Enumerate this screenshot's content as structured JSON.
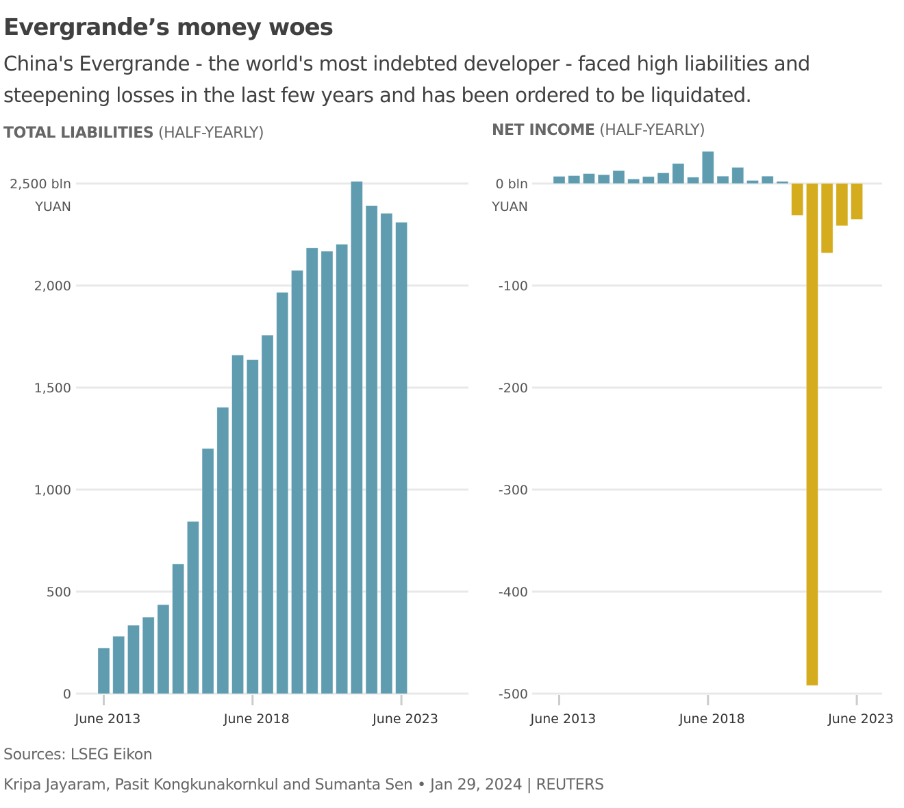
{
  "header": {
    "title": "Evergrande’s money woes",
    "subtitle": "China's Evergrande - the world's most indebted developer - faced high liabilities and steepening losses in the last few years and has been ordered to be liquidated."
  },
  "footer": {
    "sources": "Sources: LSEG Eikon",
    "credit": "Kripa Jayaram, Pasit Kongkunakornkul and Sumanta Sen • Jan 29, 2024 | REUTERS"
  },
  "colors": {
    "positive": "#5f9cb0",
    "negative": "#d4ac1d",
    "grid": "#e8e8e8",
    "tick": "#cccccc"
  },
  "chart_data": [
    {
      "type": "bar",
      "title_bold": "TOTAL LIABILITIES",
      "title_rest": " (HALF-YEARLY)",
      "unit_label_top": "bln",
      "unit_label_second": "YUAN",
      "xlabel": "",
      "ylabel": "bln yuan",
      "ylim": [
        0,
        2500
      ],
      "yticks": [
        0,
        500,
        1000,
        1500,
        2000,
        2500
      ],
      "ytick_labels": [
        "0",
        "500",
        "1,000",
        "1,500",
        "2,000",
        "2,500 bln"
      ],
      "grid": true,
      "categories": [
        "Jun 2013",
        "Dec 2013",
        "Jun 2014",
        "Dec 2014",
        "Jun 2015",
        "Dec 2015",
        "Jun 2016",
        "Dec 2016",
        "Jun 2017",
        "Dec 2017",
        "Jun 2018",
        "Dec 2018",
        "Jun 2019",
        "Dec 2019",
        "Jun 2020",
        "Dec 2020",
        "Jun 2021",
        "Dec 2021",
        "Jun 2022",
        "Dec 2022",
        "Jun 2023"
      ],
      "xticks": [
        {
          "index": 0,
          "label": "June 2013"
        },
        {
          "index": 10,
          "label": "June 2018"
        },
        {
          "index": 20,
          "label": "June 2023"
        }
      ],
      "values": [
        224,
        281,
        335,
        375,
        436,
        635,
        844,
        1201,
        1403,
        1659,
        1636,
        1757,
        1966,
        2074,
        2185,
        2168,
        2202,
        2510,
        2391,
        2354,
        2310
      ]
    },
    {
      "type": "bar",
      "title_bold": "NET INCOME",
      "title_rest": " (HALF-YEARLY)",
      "unit_label_top": "bln",
      "unit_label_second": "YUAN",
      "xlabel": "",
      "ylabel": "bln yuan",
      "ylim": [
        -500,
        0
      ],
      "yticks": [
        0,
        -100,
        -200,
        -300,
        -400,
        -500
      ],
      "ytick_labels": [
        "0 bln",
        "-100",
        "-200",
        "-300",
        "-400",
        "-500"
      ],
      "grid": true,
      "categories": [
        "Jun 2013",
        "Dec 2013",
        "Jun 2014",
        "Dec 2014",
        "Jun 2015",
        "Dec 2015",
        "Jun 2016",
        "Dec 2016",
        "Jun 2017",
        "Dec 2017",
        "Jun 2018",
        "Dec 2018",
        "Jun 2019",
        "Dec 2019",
        "Jun 2020",
        "Dec 2020",
        "Jun 2021",
        "Dec 2021",
        "Jun 2022",
        "Dec 2022",
        "Jun 2023"
      ],
      "xticks": [
        {
          "index": 0,
          "label": "June 2013"
        },
        {
          "index": 10,
          "label": "June 2018"
        },
        {
          "index": 20,
          "label": "June 2023"
        }
      ],
      "values": [
        7,
        7.7,
        9.7,
        8.6,
        12.6,
        4.4,
        6.8,
        10.4,
        19.6,
        6.2,
        31.4,
        7.2,
        15.8,
        3.0,
        7.2,
        2.0,
        -31.2,
        -492,
        -68,
        -41.4,
        -35.2
      ],
      "legend": "blue = profit, gold = loss"
    }
  ]
}
